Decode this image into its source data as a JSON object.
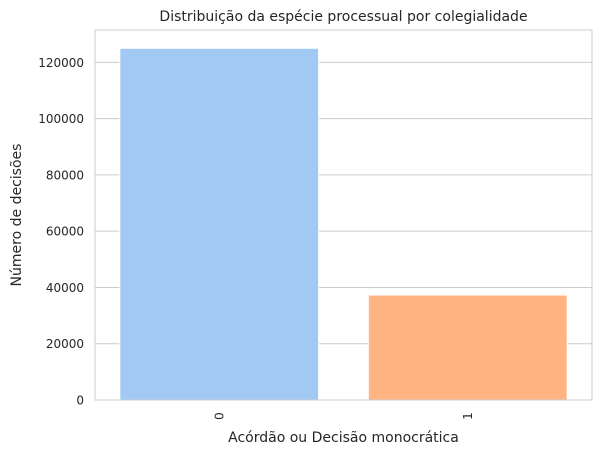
{
  "chart_data": {
    "type": "bar",
    "title": "Distribuição da espécie processual por colegialidade",
    "xlabel": "Acórdão ou Decisão monocrática",
    "ylabel": "Número de decisões",
    "categories": [
      "0",
      "1"
    ],
    "values": [
      125000,
      37300
    ],
    "colors": [
      "#a1c9f4",
      "#ffb482"
    ],
    "ylim": [
      0,
      131500
    ],
    "yticks": [
      0,
      20000,
      40000,
      60000,
      80000,
      100000,
      120000
    ],
    "ytick_labels": [
      "0",
      "20000",
      "40000",
      "60000",
      "80000",
      "100000",
      "120000"
    ],
    "grid": true,
    "xtick_rotation": "vertical"
  }
}
